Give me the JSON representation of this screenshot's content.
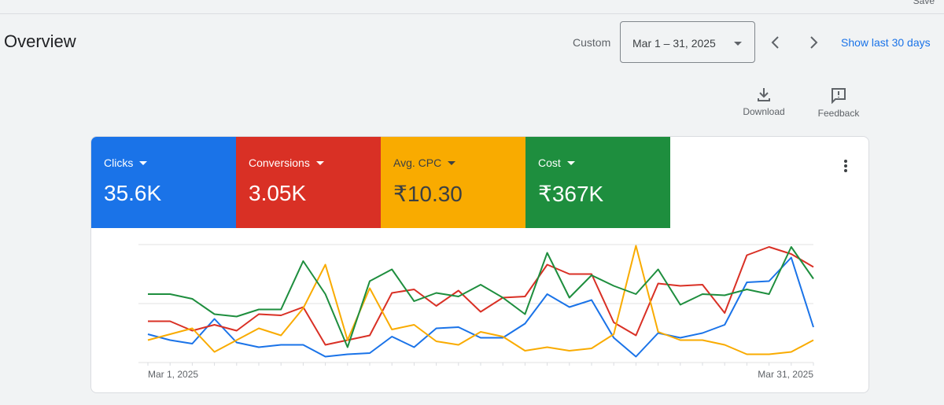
{
  "header": {
    "save": "Save",
    "title": "Overview",
    "range_label": "Custom",
    "date_range": "Mar 1 – 31, 2025",
    "show_last": "Show last 30 days",
    "download": "Download",
    "feedback": "Feedback"
  },
  "chart_data": {
    "type": "line",
    "categories": [
      "Mar 1, 2025",
      null,
      null,
      null,
      null,
      null,
      null,
      null,
      null,
      null,
      null,
      null,
      null,
      null,
      null,
      null,
      null,
      null,
      null,
      null,
      null,
      null,
      null,
      null,
      null,
      null,
      null,
      null,
      null,
      null,
      "Mar 31, 2025"
    ],
    "ylim": [
      0,
      100
    ],
    "yticks": [
      0,
      50,
      100
    ],
    "grid": true,
    "series": [
      {
        "name": "Clicks",
        "total": "35.6K",
        "color": "#1a73e8",
        "values": [
          24,
          19,
          16,
          37,
          17,
          13,
          15,
          15,
          5,
          7,
          8,
          22,
          13,
          29,
          30,
          21,
          21,
          33,
          58,
          47,
          53,
          21,
          5,
          25,
          21,
          25,
          32,
          68,
          69,
          89,
          30
        ]
      },
      {
        "name": "Conversions",
        "total": "3.05K",
        "color": "#d93025",
        "values": [
          35,
          35,
          27,
          32,
          27,
          41,
          40,
          47,
          15,
          19,
          23,
          59,
          62,
          48,
          61,
          43,
          55,
          56,
          83,
          75,
          75,
          34,
          23,
          67,
          65,
          66,
          42,
          91,
          98,
          92,
          81
        ]
      },
      {
        "name": "Avg. CPC",
        "total": "₹10.30",
        "color": "#f9ab00",
        "values": [
          19,
          24,
          29,
          9,
          19,
          29,
          23,
          46,
          83,
          19,
          63,
          28,
          32,
          18,
          15,
          26,
          22,
          10,
          13,
          10,
          12,
          24,
          99,
          26,
          19,
          19,
          15,
          7,
          7,
          9,
          19
        ]
      },
      {
        "name": "Cost",
        "total": "₹367K",
        "color": "#1e8e3e",
        "values": [
          58,
          58,
          54,
          41,
          39,
          45,
          45,
          86,
          58,
          13,
          69,
          79,
          52,
          59,
          56,
          66,
          55,
          41,
          93,
          55,
          74,
          65,
          58,
          79,
          49,
          58,
          57,
          62,
          58,
          98,
          71
        ]
      }
    ]
  }
}
